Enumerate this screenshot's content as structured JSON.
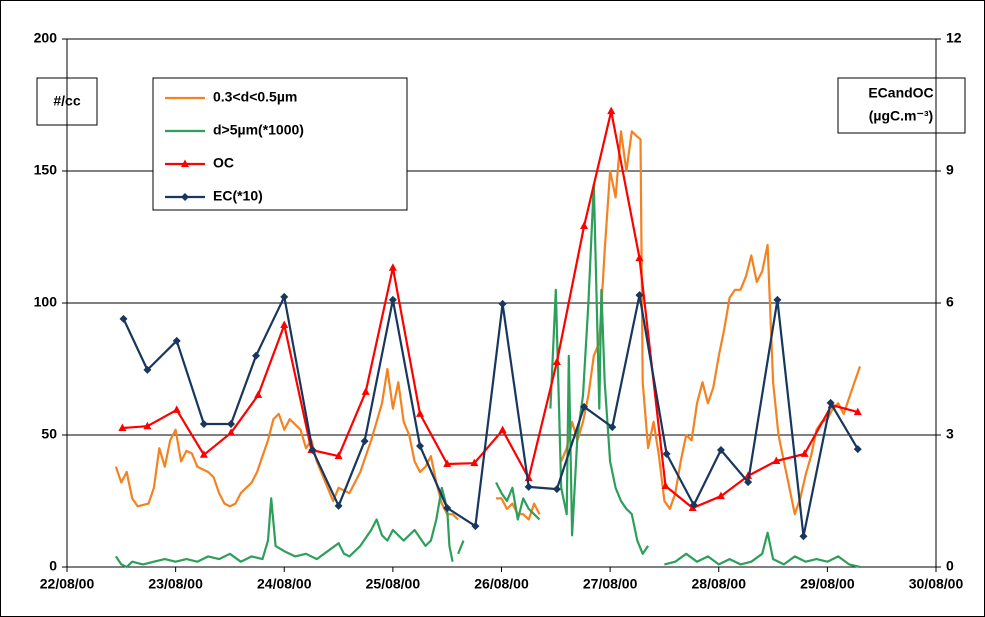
{
  "chart_data": {
    "type": "line",
    "y_label": "#/cc",
    "y2_label": [
      "ECandOC",
      "(µgC.m⁻³)"
    ],
    "xlim": [
      22,
      30
    ],
    "xticks": [
      {
        "value": 22,
        "label": "22/08/00"
      },
      {
        "value": 23,
        "label": "23/08/00"
      },
      {
        "value": 24,
        "label": "24/08/00"
      },
      {
        "value": 25,
        "label": "25/08/00"
      },
      {
        "value": 26,
        "label": "26/08/00"
      },
      {
        "value": 27,
        "label": "27/08/00"
      },
      {
        "value": 28,
        "label": "28/08/00"
      },
      {
        "value": 29,
        "label": "29/08/00"
      },
      {
        "value": 30,
        "label": "30/08/00"
      }
    ],
    "ylim": [
      0,
      200
    ],
    "yticks": [
      0,
      50,
      100,
      150,
      200
    ],
    "y2lim": [
      0,
      12
    ],
    "y2ticks": [
      0,
      3,
      6,
      9,
      12
    ],
    "grid": true,
    "legend": "upper left",
    "series": [
      {
        "name": "0.3<d<0.5µm",
        "color": "#f58220",
        "marker": "none",
        "x": [
          22.45,
          22.5,
          22.55,
          22.6,
          22.65,
          22.75,
          22.8,
          22.85,
          22.9,
          22.95,
          23.0,
          23.05,
          23.1,
          23.15,
          23.2,
          23.3,
          23.35,
          23.4,
          23.45,
          23.5,
          23.55,
          23.6,
          23.7,
          23.75,
          23.8,
          23.85,
          23.9,
          23.95,
          24.0,
          24.05,
          24.1,
          24.15,
          24.2,
          24.25,
          24.3,
          24.4,
          24.45,
          24.5,
          24.6,
          24.7,
          24.75,
          24.8,
          24.85,
          24.9,
          24.95,
          25.0,
          25.05,
          25.1,
          25.15,
          25.2,
          25.25,
          25.3,
          25.35,
          25.4,
          25.45,
          25.5,
          25.55,
          25.6,
          25.8,
          25.95,
          26.0,
          26.05,
          26.1,
          26.15,
          26.2,
          26.25,
          26.3,
          26.35,
          26.45,
          26.55,
          26.6,
          26.65,
          26.7,
          26.75,
          26.8,
          26.85,
          26.9,
          26.95,
          27.0,
          27.05,
          27.1,
          27.15,
          27.2,
          27.25,
          27.28,
          27.3,
          27.35,
          27.4,
          27.45,
          27.5,
          27.55,
          27.6,
          27.65,
          27.7,
          27.75,
          27.8,
          27.85,
          27.9,
          27.95,
          28.0,
          28.05,
          28.1,
          28.15,
          28.2,
          28.25,
          28.3,
          28.35,
          28.4,
          28.45,
          28.5,
          28.55,
          28.6,
          28.65,
          28.7,
          28.75,
          28.8,
          28.85,
          28.9,
          28.95,
          29.0,
          29.05,
          29.1,
          29.15,
          29.2,
          29.25,
          29.3
        ],
        "values": [
          38,
          32,
          36,
          26,
          23,
          24,
          30,
          45,
          38,
          48,
          52,
          40,
          44,
          43,
          38,
          36,
          34,
          28,
          24,
          23,
          24,
          28,
          32,
          36,
          42,
          48,
          56,
          58,
          52,
          56,
          54,
          52,
          45,
          48,
          40,
          30,
          25,
          30,
          28,
          36,
          42,
          48,
          55,
          62,
          75,
          60,
          70,
          55,
          50,
          40,
          36,
          38,
          42,
          32,
          24,
          20,
          20,
          18,
          null,
          26,
          26,
          22,
          24,
          20,
          20,
          18,
          24,
          20,
          null,
          40,
          45,
          55,
          48,
          55,
          65,
          80,
          85,
          120,
          150,
          140,
          165,
          150,
          165,
          163,
          162,
          70,
          45,
          55,
          42,
          25,
          22,
          28,
          40,
          50,
          48,
          62,
          70,
          62,
          68,
          80,
          90,
          102,
          105,
          105,
          110,
          118,
          108,
          112,
          122,
          70,
          50,
          40,
          30,
          20,
          26,
          35,
          42,
          52,
          55,
          56,
          60,
          62,
          58,
          64,
          70,
          76
        ]
      },
      {
        "name": "d>5µm(*1000)",
        "color": "#2e9e5b",
        "marker": "none",
        "x": [
          22.45,
          22.5,
          22.55,
          22.6,
          22.7,
          22.8,
          22.9,
          23.0,
          23.1,
          23.2,
          23.3,
          23.4,
          23.5,
          23.6,
          23.7,
          23.8,
          23.85,
          23.88,
          23.92,
          24.0,
          24.1,
          24.2,
          24.3,
          24.4,
          24.5,
          24.55,
          24.6,
          24.7,
          24.8,
          24.85,
          24.9,
          24.95,
          25.0,
          25.05,
          25.1,
          25.2,
          25.3,
          25.35,
          25.4,
          25.45,
          25.5,
          25.52,
          25.55,
          25.57,
          25.6,
          25.65,
          25.8,
          25.95,
          26.0,
          26.05,
          26.1,
          26.15,
          26.2,
          26.25,
          26.3,
          26.35,
          26.4,
          26.45,
          26.5,
          26.55,
          26.6,
          26.62,
          26.65,
          26.7,
          26.75,
          26.8,
          26.85,
          26.9,
          26.92,
          26.95,
          27.0,
          27.05,
          27.1,
          27.15,
          27.2,
          27.25,
          27.3,
          27.35,
          27.42,
          27.5,
          27.6,
          27.7,
          27.8,
          27.9,
          28.0,
          28.1,
          28.2,
          28.3,
          28.4,
          28.45,
          28.5,
          28.6,
          28.7,
          28.8,
          28.9,
          29.0,
          29.1,
          29.2,
          29.3
        ],
        "values": [
          4,
          1,
          0,
          2,
          1,
          2,
          3,
          2,
          3,
          2,
          4,
          3,
          5,
          2,
          4,
          3,
          10,
          26,
          8,
          6,
          4,
          5,
          3,
          6,
          9,
          5,
          4,
          8,
          14,
          18,
          12,
          10,
          14,
          12,
          10,
          14,
          8,
          10,
          18,
          30,
          22,
          8,
          2,
          null,
          5,
          10,
          null,
          32,
          28,
          25,
          30,
          18,
          26,
          22,
          20,
          18,
          null,
          60,
          105,
          30,
          20,
          80,
          12,
          50,
          65,
          100,
          145,
          60,
          105,
          70,
          40,
          30,
          25,
          22,
          20,
          10,
          5,
          8,
          null,
          1,
          2,
          5,
          2,
          4,
          1,
          3,
          1,
          2,
          5,
          13,
          3,
          1,
          4,
          2,
          3,
          2,
          4,
          1,
          0
        ]
      },
      {
        "name": "OC",
        "color": "#ff0000",
        "marker": "triangle",
        "axis": "y2",
        "x": [
          22.51,
          22.74,
          23.01,
          23.26,
          23.51,
          23.76,
          24.0,
          24.25,
          24.5,
          24.75,
          25.0,
          25.25,
          25.5,
          25.75,
          26.01,
          26.25,
          26.51,
          26.76,
          27.01,
          27.27,
          27.51,
          27.76,
          28.02,
          28.27,
          28.53,
          28.79,
          29.04,
          29.28
        ],
        "values": [
          3.16,
          3.2,
          3.57,
          2.55,
          3.05,
          3.91,
          5.5,
          2.66,
          2.52,
          3.98,
          6.8,
          3.48,
          2.34,
          2.36,
          3.11,
          2.02,
          4.66,
          7.75,
          10.36,
          7.02,
          1.84,
          1.34,
          1.61,
          2.07,
          2.41,
          2.57,
          3.68,
          3.52
        ]
      },
      {
        "name": "EC(*10)",
        "color": "#17375e",
        "marker": "diamond",
        "axis": "y2",
        "x": [
          22.52,
          22.74,
          23.01,
          23.26,
          23.51,
          23.74,
          24.0,
          24.26,
          24.5,
          24.74,
          25.0,
          25.25,
          25.5,
          25.76,
          26.01,
          26.25,
          26.51,
          26.76,
          27.02,
          27.27,
          27.52,
          27.77,
          28.02,
          28.27,
          28.54,
          28.78,
          29.03,
          29.28
        ],
        "values": [
          5.64,
          4.48,
          5.14,
          3.25,
          3.25,
          4.8,
          6.14,
          2.66,
          1.39,
          2.86,
          6.07,
          2.75,
          1.34,
          0.93,
          5.98,
          1.82,
          1.77,
          3.64,
          3.18,
          6.18,
          2.57,
          1.41,
          2.66,
          1.93,
          6.07,
          0.7,
          3.73,
          2.68
        ]
      }
    ]
  }
}
